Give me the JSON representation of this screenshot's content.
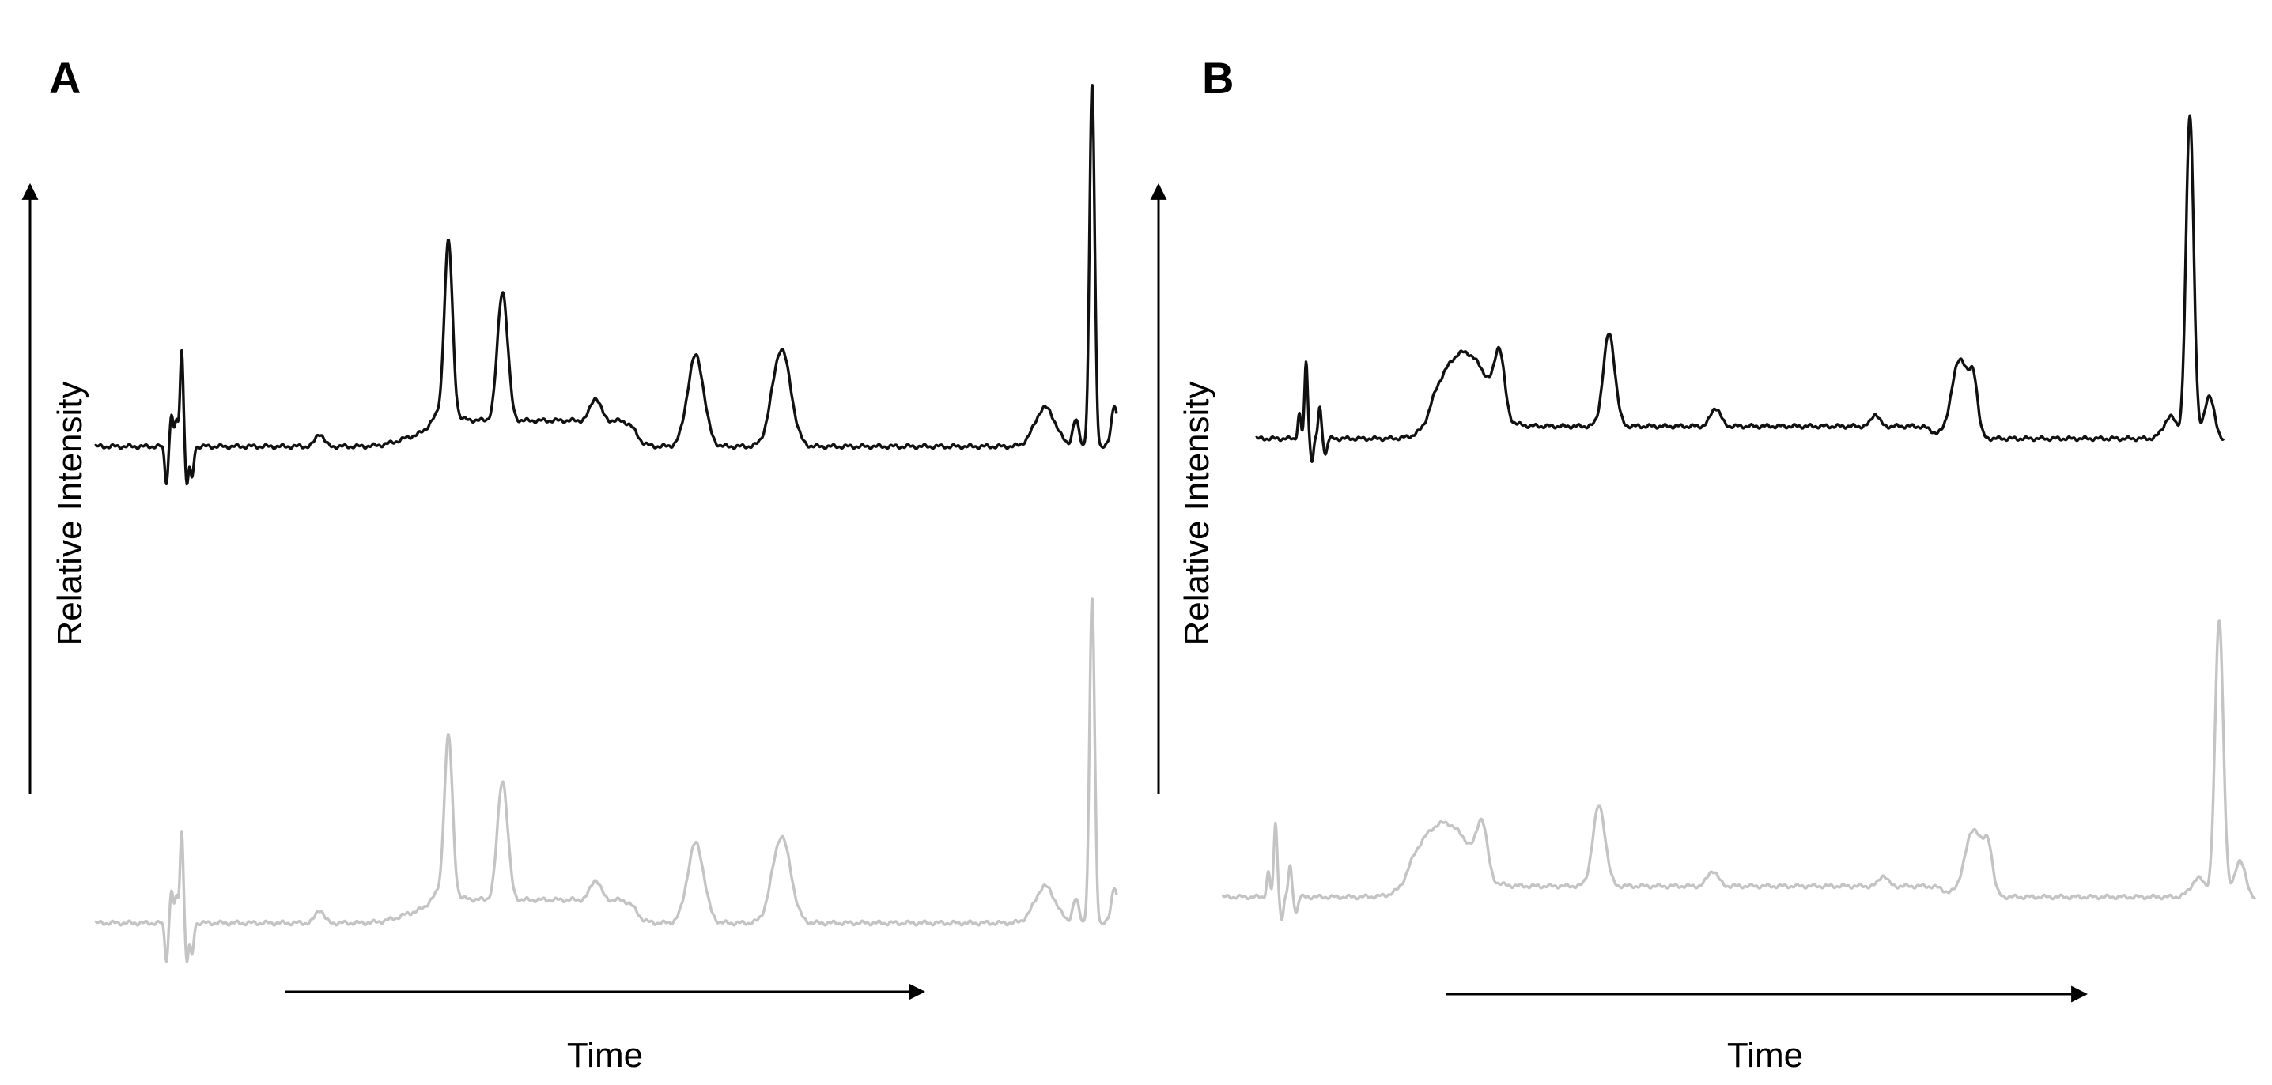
{
  "colors": {
    "trace_top": "#111111",
    "trace_bottom": "#c4c4c4",
    "axis": "#000000"
  },
  "chart_data": [
    {
      "type": "line",
      "panel_label": "A",
      "xlabel": "Time",
      "ylabel": "Relative Intensity",
      "x_range": [
        0,
        1
      ],
      "series": [
        {
          "color": "#111111",
          "baseline": 0.1,
          "noise": [
            {
              "x": 0.07,
              "a": -0.11
            },
            {
              "x": 0.075,
              "a": 0.1
            },
            {
              "x": 0.08,
              "a": 0.08
            },
            {
              "x": 0.085,
              "a": 0.3
            },
            {
              "x": 0.09,
              "a": -0.12
            },
            {
              "x": 0.095,
              "a": -0.1
            }
          ],
          "peaks": [
            {
              "x": 0.22,
              "h": 0.04,
              "w": 0.004
            },
            {
              "x": 0.32,
              "h": 0.035,
              "w": 0.02
            },
            {
              "x": 0.346,
              "h": 0.54,
              "w": 0.004
            },
            {
              "x": 0.399,
              "h": 0.4,
              "w": 0.005
            },
            {
              "x": 0.49,
              "h": 0.07,
              "w": 0.005
            },
            {
              "x": 0.588,
              "h": 0.28,
              "w": 0.008
            },
            {
              "x": 0.672,
              "h": 0.3,
              "w": 0.009
            },
            {
              "x": 0.93,
              "h": 0.12,
              "w": 0.01
            },
            {
              "x": 0.96,
              "h": 0.08,
              "w": 0.003
            },
            {
              "x": 0.976,
              "h": 1.12,
              "w": 0.0025
            },
            {
              "x": 0.998,
              "h": 0.13,
              "w": 0.003
            }
          ],
          "plateaus": [
            {
              "x0": 0.328,
              "x1": 0.53,
              "h": 0.08
            }
          ]
        },
        {
          "color": "#c4c4c4",
          "baseline": 0.1,
          "noise": [
            {
              "x": 0.07,
              "a": -0.11
            },
            {
              "x": 0.075,
              "a": 0.1
            },
            {
              "x": 0.08,
              "a": 0.08
            },
            {
              "x": 0.085,
              "a": 0.28
            },
            {
              "x": 0.09,
              "a": -0.12
            },
            {
              "x": 0.095,
              "a": -0.1
            }
          ],
          "peaks": [
            {
              "x": 0.22,
              "h": 0.04,
              "w": 0.004
            },
            {
              "x": 0.32,
              "h": 0.035,
              "w": 0.02
            },
            {
              "x": 0.346,
              "h": 0.48,
              "w": 0.004
            },
            {
              "x": 0.399,
              "h": 0.36,
              "w": 0.005
            },
            {
              "x": 0.49,
              "h": 0.06,
              "w": 0.005
            },
            {
              "x": 0.588,
              "h": 0.24,
              "w": 0.008
            },
            {
              "x": 0.672,
              "h": 0.26,
              "w": 0.009
            },
            {
              "x": 0.93,
              "h": 0.11,
              "w": 0.01
            },
            {
              "x": 0.96,
              "h": 0.07,
              "w": 0.003
            },
            {
              "x": 0.976,
              "h": 0.98,
              "w": 0.0025
            },
            {
              "x": 0.998,
              "h": 0.11,
              "w": 0.003
            }
          ],
          "plateaus": [
            {
              "x0": 0.328,
              "x1": 0.53,
              "h": 0.07
            }
          ]
        }
      ]
    },
    {
      "type": "line",
      "panel_label": "B",
      "xlabel": "Time",
      "ylabel": "Relative Intensity",
      "x_range": [
        0,
        1
      ],
      "series": [
        {
          "color": "#111111",
          "baseline": 0.1,
          "noise": [
            {
              "x": 0.045,
              "a": 0.08
            },
            {
              "x": 0.052,
              "a": 0.25
            },
            {
              "x": 0.058,
              "a": -0.07
            },
            {
              "x": 0.066,
              "a": 0.1
            },
            {
              "x": 0.072,
              "a": -0.05
            }
          ],
          "peaks": [
            {
              "x": 0.215,
              "h": 0.18,
              "w": 0.022
            },
            {
              "x": 0.252,
              "h": 0.2,
              "w": 0.005
            },
            {
              "x": 0.365,
              "h": 0.3,
              "w": 0.006
            },
            {
              "x": 0.475,
              "h": 0.06,
              "w": 0.005
            },
            {
              "x": 0.64,
              "h": 0.04,
              "w": 0.004
            },
            {
              "x": 0.728,
              "h": 0.26,
              "w": 0.009
            },
            {
              "x": 0.742,
              "h": 0.14,
              "w": 0.004
            },
            {
              "x": 0.945,
              "h": 0.07,
              "w": 0.007
            },
            {
              "x": 0.965,
              "h": 1.05,
              "w": 0.004
            },
            {
              "x": 0.985,
              "h": 0.14,
              "w": 0.005
            }
          ],
          "plateaus": [
            {
              "x0": 0.18,
              "x1": 0.25,
              "h": 0.1
            },
            {
              "x0": 0.255,
              "x1": 0.7,
              "h": 0.04
            }
          ]
        },
        {
          "color": "#c4c4c4",
          "baseline": 0.1,
          "noise": [
            {
              "x": 0.045,
              "a": 0.08
            },
            {
              "x": 0.052,
              "a": 0.24
            },
            {
              "x": 0.058,
              "a": -0.07
            },
            {
              "x": 0.066,
              "a": 0.1
            },
            {
              "x": 0.072,
              "a": -0.05
            }
          ],
          "peaks": [
            {
              "x": 0.215,
              "h": 0.15,
              "w": 0.022
            },
            {
              "x": 0.252,
              "h": 0.17,
              "w": 0.005
            },
            {
              "x": 0.365,
              "h": 0.26,
              "w": 0.006
            },
            {
              "x": 0.475,
              "h": 0.05,
              "w": 0.005
            },
            {
              "x": 0.64,
              "h": 0.035,
              "w": 0.004
            },
            {
              "x": 0.728,
              "h": 0.22,
              "w": 0.009
            },
            {
              "x": 0.742,
              "h": 0.12,
              "w": 0.004
            },
            {
              "x": 0.945,
              "h": 0.06,
              "w": 0.007
            },
            {
              "x": 0.965,
              "h": 0.9,
              "w": 0.004
            },
            {
              "x": 0.985,
              "h": 0.12,
              "w": 0.005
            }
          ],
          "plateaus": [
            {
              "x0": 0.18,
              "x1": 0.25,
              "h": 0.09
            },
            {
              "x0": 0.255,
              "x1": 0.7,
              "h": 0.035
            }
          ]
        }
      ]
    }
  ]
}
